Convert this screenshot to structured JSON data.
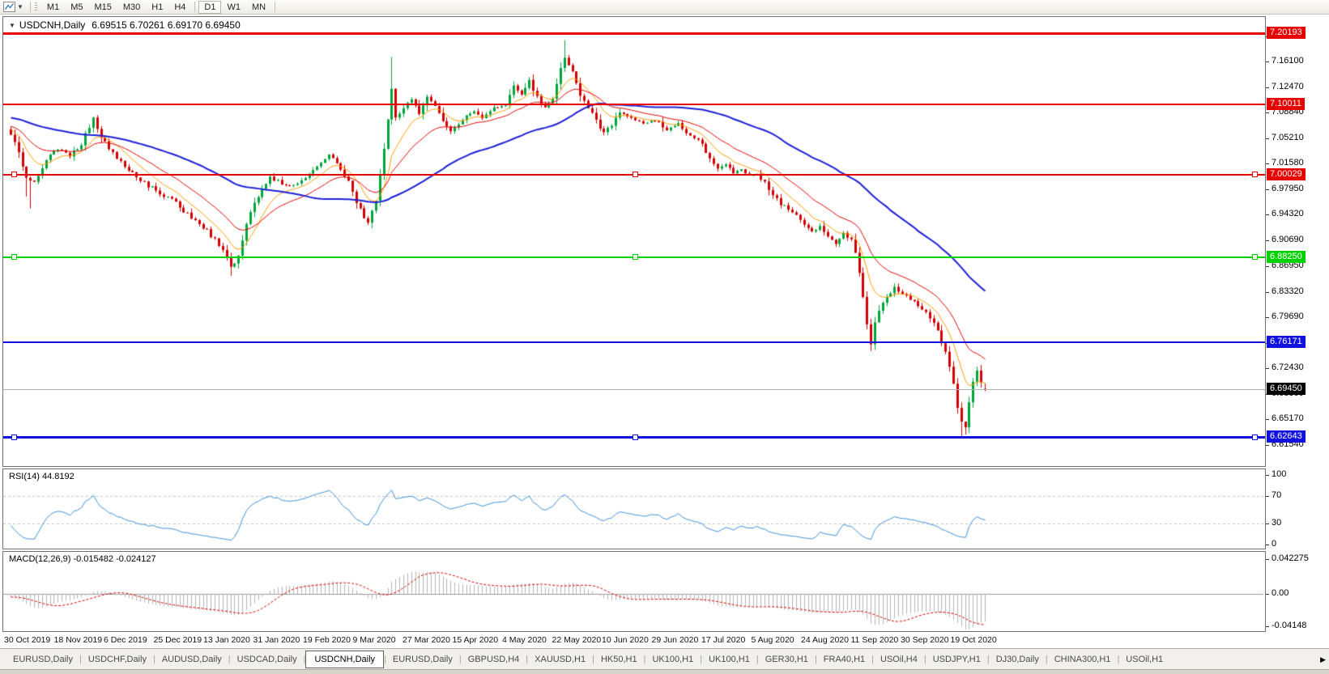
{
  "toolbar": {
    "timeframes": [
      "M1",
      "M5",
      "M15",
      "M30",
      "H1",
      "H4",
      "D1",
      "W1",
      "MN"
    ],
    "active_timeframe": "D1"
  },
  "chart": {
    "title_symbol": "USDCNH,Daily",
    "title_ohlc": "6.69515 6.70261 6.69170 6.69450"
  },
  "chart_data": {
    "type": "candlestick",
    "symbol": "USDCNH",
    "period": "Daily",
    "current_bar": {
      "open": 6.69515,
      "high": 6.70261,
      "low": 6.6917,
      "close": 6.6945
    },
    "current_price": {
      "value": 6.6945,
      "line_color": "#b0b0b0",
      "badge_color": "#000000"
    },
    "candle_colors": {
      "up": "#00a53c",
      "down": "#d40000"
    },
    "x_axis_dates": [
      "30 Oct 2019",
      "18 Nov 2019",
      "6 Dec 2019",
      "25 Dec 2019",
      "13 Jan 2020",
      "31 Jan 2020",
      "19 Feb 2020",
      "9 Mar 2020",
      "27 Mar 2020",
      "15 Apr 2020",
      "4 May 2020",
      "22 May 2020",
      "10 Jun 2020",
      "29 Jun 2020",
      "17 Jul 2020",
      "5 Aug 2020",
      "24 Aug 2020",
      "11 Sep 2020",
      "30 Sep 2020",
      "19 Oct 2020"
    ],
    "y_axis_ticks": [
      "7.19730",
      "7.16100",
      "7.12470",
      "7.08840",
      "7.05210",
      "7.01580",
      "6.97950",
      "6.94320",
      "6.90690",
      "6.86950",
      "6.83320",
      "6.79690",
      "6.76060",
      "6.72430",
      "6.68800",
      "6.65170",
      "6.61540"
    ],
    "horizontal_lines": [
      {
        "price": 7.20193,
        "color": "#e60000",
        "width": 3,
        "selected": false
      },
      {
        "price": 7.10011,
        "color": "#e60000",
        "width": 2,
        "selected": false
      },
      {
        "price": 7.00029,
        "color": "#e60000",
        "width": 2,
        "selected": true
      },
      {
        "price": 6.8825,
        "color": "#00d200",
        "width": 2,
        "selected": true
      },
      {
        "price": 6.76171,
        "color": "#1212e0",
        "width": 2,
        "selected": false
      },
      {
        "price": 6.62643,
        "color": "#1212e0",
        "width": 3,
        "selected": true
      }
    ],
    "moving_averages": [
      {
        "period": 9,
        "color": "#ff9c00",
        "width": 1
      },
      {
        "period": 21,
        "color": "#e60000",
        "width": 1
      },
      {
        "period": 55,
        "color": "#1f1fd6",
        "width": 2
      }
    ],
    "rsi": {
      "label": "RSI(14) 44.8192",
      "period": 14,
      "value": 44.8192,
      "levels": [
        30,
        70
      ],
      "axis_ticks": [
        "100",
        "70",
        "30",
        "0"
      ],
      "color": "#3e8fd8"
    },
    "macd": {
      "label": "MACD(12,26,9) -0.015482 -0.024127",
      "fast": 12,
      "slow": 26,
      "signal": 9,
      "value": -0.015482,
      "signal_value": -0.024127,
      "axis_ticks": [
        "0.042275",
        "0.00",
        "-0.04148"
      ],
      "histogram_color": "#b4b4b4",
      "signal_color": "#dc0000"
    },
    "num_candles": 249,
    "seed": 20201029,
    "anchors": [
      [
        -60,
        7.108
      ],
      [
        -40,
        7.09
      ],
      [
        -20,
        7.076
      ],
      [
        -8,
        7.068
      ],
      [
        0,
        7.063
      ],
      [
        2,
        7.032
      ],
      [
        4,
        6.994
      ],
      [
        6,
        6.988
      ],
      [
        9,
        7.02
      ],
      [
        12,
        7.036
      ],
      [
        15,
        7.028
      ],
      [
        18,
        7.044
      ],
      [
        21,
        7.082
      ],
      [
        23,
        7.052
      ],
      [
        25,
        7.038
      ],
      [
        28,
        7.02
      ],
      [
        31,
        7.002
      ],
      [
        34,
        6.99
      ],
      [
        38,
        6.974
      ],
      [
        42,
        6.958
      ],
      [
        46,
        6.94
      ],
      [
        50,
        6.92
      ],
      [
        53,
        6.9
      ],
      [
        56,
        6.868
      ],
      [
        58,
        6.884
      ],
      [
        60,
        6.93
      ],
      [
        62,
        6.958
      ],
      [
        64,
        6.98
      ],
      [
        66,
        6.996
      ],
      [
        69,
        6.988
      ],
      [
        72,
        6.984
      ],
      [
        75,
        6.998
      ],
      [
        78,
        7.012
      ],
      [
        81,
        7.028
      ],
      [
        84,
        7.008
      ],
      [
        86,
        6.992
      ],
      [
        88,
        6.962
      ],
      [
        90,
        6.94
      ],
      [
        91,
        6.932
      ],
      [
        93,
        6.964
      ],
      [
        95,
        7.04
      ],
      [
        97,
        7.12
      ],
      [
        98,
        7.082
      ],
      [
        100,
        7.094
      ],
      [
        102,
        7.108
      ],
      [
        104,
        7.088
      ],
      [
        106,
        7.112
      ],
      [
        108,
        7.098
      ],
      [
        110,
        7.078
      ],
      [
        112,
        7.062
      ],
      [
        114,
        7.072
      ],
      [
        116,
        7.086
      ],
      [
        118,
        7.09
      ],
      [
        120,
        7.08
      ],
      [
        123,
        7.094
      ],
      [
        126,
        7.1
      ],
      [
        128,
        7.128
      ],
      [
        130,
        7.114
      ],
      [
        132,
        7.134
      ],
      [
        134,
        7.11
      ],
      [
        136,
        7.096
      ],
      [
        138,
        7.108
      ],
      [
        140,
        7.15
      ],
      [
        141,
        7.166
      ],
      [
        143,
        7.148
      ],
      [
        145,
        7.115
      ],
      [
        147,
        7.096
      ],
      [
        149,
        7.076
      ],
      [
        151,
        7.06
      ],
      [
        153,
        7.072
      ],
      [
        155,
        7.088
      ],
      [
        157,
        7.084
      ],
      [
        159,
        7.078
      ],
      [
        161,
        7.072
      ],
      [
        164,
        7.078
      ],
      [
        167,
        7.064
      ],
      [
        170,
        7.072
      ],
      [
        173,
        7.058
      ],
      [
        176,
        7.044
      ],
      [
        178,
        7.022
      ],
      [
        180,
        7.01
      ],
      [
        182,
        7.016
      ],
      [
        184,
        7.002
      ],
      [
        186,
        7.008
      ],
      [
        188,
        6.998
      ],
      [
        190,
        7.002
      ],
      [
        192,
        6.988
      ],
      [
        194,
        6.972
      ],
      [
        196,
        6.958
      ],
      [
        198,
        6.952
      ],
      [
        200,
        6.944
      ],
      [
        202,
        6.93
      ],
      [
        204,
        6.918
      ],
      [
        206,
        6.926
      ],
      [
        208,
        6.912
      ],
      [
        210,
        6.902
      ],
      [
        212,
        6.916
      ],
      [
        214,
        6.906
      ],
      [
        215,
        6.888
      ],
      [
        216,
        6.86
      ],
      [
        217,
        6.826
      ],
      [
        218,
        6.786
      ],
      [
        219,
        6.758
      ],
      [
        220,
        6.79
      ],
      [
        221,
        6.806
      ],
      [
        223,
        6.824
      ],
      [
        225,
        6.84
      ],
      [
        227,
        6.83
      ],
      [
        229,
        6.822
      ],
      [
        231,
        6.814
      ],
      [
        233,
        6.803
      ],
      [
        235,
        6.79
      ],
      [
        237,
        6.762
      ],
      [
        239,
        6.728
      ],
      [
        240,
        6.702
      ],
      [
        241,
        6.668
      ],
      [
        242,
        6.648
      ],
      [
        243,
        6.64
      ],
      [
        244,
        6.676
      ],
      [
        245,
        6.705
      ],
      [
        246,
        6.722
      ],
      [
        247,
        6.705
      ],
      [
        248,
        6.6945
      ]
    ],
    "wick_overrides": {
      "4": {
        "low": 6.969
      },
      "5": {
        "low": 6.952
      },
      "56": {
        "low": 6.856
      },
      "97": {
        "high": 7.168
      },
      "141": {
        "high": 7.192
      },
      "219": {
        "low": 6.749
      },
      "242": {
        "low": 6.627
      },
      "243": {
        "low": 6.63
      }
    }
  },
  "tabs": {
    "items": [
      "EURUSD,Daily",
      "USDCHF,Daily",
      "AUDUSD,Daily",
      "USDCAD,Daily",
      "USDCNH,Daily",
      "EURUSD,Daily",
      "GBPUSD,H4",
      "XAUUSD,H1",
      "HK50,H1",
      "UK100,H1",
      "UK100,H1",
      "GER30,H1",
      "FRA40,H1",
      "USOil,H4",
      "USDJPY,H1",
      "DJ30,Daily",
      "CHINA300,H1",
      "USOil,H1"
    ],
    "active_index": 4
  }
}
